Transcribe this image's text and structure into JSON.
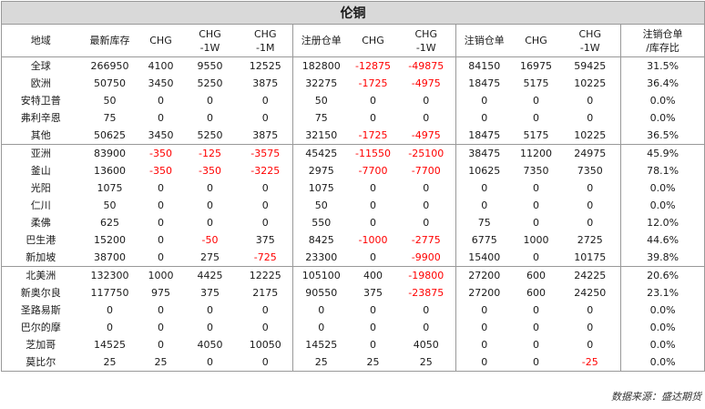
{
  "title": "伦铜",
  "headers": [
    "地域",
    "最新库存",
    "CHG",
    "CHG\n-1W",
    "CHG\n-1M",
    "注册仓单",
    "CHG",
    "CHG\n-1W",
    "注销仓单",
    "CHG",
    "CHG\n-1W",
    "注销仓单\n/库存比"
  ],
  "rows": [
    {
      "name": "全球",
      "level": "group",
      "values": [
        "266950",
        "4100",
        "9550",
        "12525",
        "182800",
        "-12875",
        "-49875",
        "84150",
        "16975",
        "59425",
        "31.5%"
      ]
    },
    {
      "name": "欧洲",
      "level": "group",
      "values": [
        "50750",
        "3450",
        "5250",
        "3875",
        "32275",
        "-1725",
        "-4975",
        "18475",
        "5175",
        "10225",
        "36.4%"
      ]
    },
    {
      "name": "安特卫普",
      "level": "sub",
      "values": [
        "50",
        "0",
        "0",
        "0",
        "50",
        "0",
        "0",
        "0",
        "0",
        "0",
        "0.0%"
      ]
    },
    {
      "name": "弗利辛恩",
      "level": "sub",
      "values": [
        "75",
        "0",
        "0",
        "0",
        "75",
        "0",
        "0",
        "0",
        "0",
        "0",
        "0.0%"
      ]
    },
    {
      "name": "其他",
      "level": "sub",
      "values": [
        "50625",
        "3450",
        "5250",
        "3875",
        "32150",
        "-1725",
        "-4975",
        "18475",
        "5175",
        "10225",
        "36.5%"
      ]
    },
    {
      "name": "亚洲",
      "level": "group",
      "values": [
        "83900",
        "-350",
        "-125",
        "-3575",
        "45425",
        "-11550",
        "-25100",
        "38475",
        "11200",
        "24975",
        "45.9%"
      ]
    },
    {
      "name": "釜山",
      "level": "sub",
      "values": [
        "13600",
        "-350",
        "-350",
        "-3225",
        "2975",
        "-7700",
        "-7700",
        "10625",
        "7350",
        "7350",
        "78.1%"
      ]
    },
    {
      "name": "光阳",
      "level": "sub",
      "values": [
        "1075",
        "0",
        "0",
        "0",
        "1075",
        "0",
        "0",
        "0",
        "0",
        "0",
        "0.0%"
      ]
    },
    {
      "name": "仁川",
      "level": "sub",
      "values": [
        "50",
        "0",
        "0",
        "0",
        "50",
        "0",
        "0",
        "0",
        "0",
        "0",
        "0.0%"
      ]
    },
    {
      "name": "柔佛",
      "level": "sub",
      "values": [
        "625",
        "0",
        "0",
        "0",
        "550",
        "0",
        "0",
        "75",
        "0",
        "0",
        "12.0%"
      ]
    },
    {
      "name": "巴生港",
      "level": "sub",
      "values": [
        "15200",
        "0",
        "-50",
        "375",
        "8425",
        "-1000",
        "-2775",
        "6775",
        "1000",
        "2725",
        "44.6%"
      ]
    },
    {
      "name": "新加坡",
      "level": "sub",
      "values": [
        "38700",
        "0",
        "275",
        "-725",
        "23300",
        "0",
        "-9900",
        "15400",
        "0",
        "10175",
        "39.8%"
      ]
    },
    {
      "name": "北美洲",
      "level": "group",
      "values": [
        "132300",
        "1000",
        "4425",
        "12225",
        "105100",
        "400",
        "-19800",
        "27200",
        "600",
        "24225",
        "20.6%"
      ]
    },
    {
      "name": "新奥尔良",
      "level": "sub",
      "values": [
        "117750",
        "975",
        "375",
        "2175",
        "90550",
        "375",
        "-23875",
        "27200",
        "600",
        "24250",
        "23.1%"
      ]
    },
    {
      "name": "圣路易斯",
      "level": "sub",
      "values": [
        "0",
        "0",
        "0",
        "0",
        "0",
        "0",
        "0",
        "0",
        "0",
        "0",
        "0.0%"
      ]
    },
    {
      "name": "巴尔的摩",
      "level": "sub",
      "values": [
        "0",
        "0",
        "0",
        "0",
        "0",
        "0",
        "0",
        "0",
        "0",
        "0",
        "0.0%"
      ]
    },
    {
      "name": "芝加哥",
      "level": "sub",
      "values": [
        "14525",
        "0",
        "4050",
        "10050",
        "14525",
        "0",
        "4050",
        "0",
        "0",
        "0",
        "0.0%"
      ]
    },
    {
      "name": "莫比尔",
      "level": "sub",
      "values": [
        "25",
        "25",
        "0",
        "0",
        "25",
        "25",
        "25",
        "0",
        "0",
        "-25",
        "0.0%"
      ]
    }
  ],
  "source": "数据来源：盛达期货",
  "colors": {
    "negative": "#ff0000",
    "title_bg": "#d9d9d9",
    "border": "#999999"
  }
}
